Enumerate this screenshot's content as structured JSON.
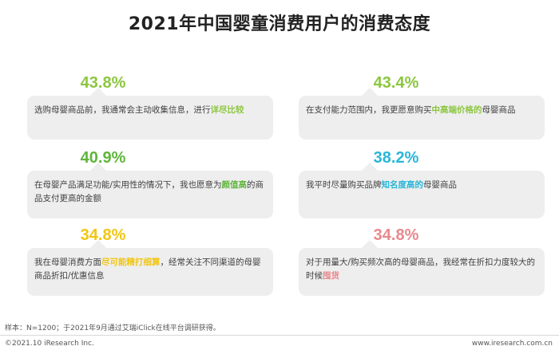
{
  "title": "2021年中国婴童消费用户的消费态度",
  "cards": [
    {
      "percent": "43.8%",
      "percent_color": "#8cc63e",
      "text_before": "选购母婴商品前，我通常会主动收集信息，进行",
      "highlight": "详尽比较",
      "highlight_color": "#8cc63e",
      "text_after": ""
    },
    {
      "percent": "43.4%",
      "percent_color": "#8cc63e",
      "text_before": "在支付能力范围内，我更愿意购买",
      "highlight": "中高端价格的",
      "highlight_color": "#8cc63e",
      "text_after": "母婴商品"
    },
    {
      "percent": "40.9%",
      "percent_color": "#5fb53b",
      "text_before": "在母婴产品满足功能/实用性的情况下，我也愿意为",
      "highlight": "颜值高",
      "highlight_color": "#5fb53b",
      "text_after": "的商品支付更高的金额"
    },
    {
      "percent": "38.2%",
      "percent_color": "#29b6d8",
      "text_before": "我平时尽量购买品牌",
      "highlight": "知名度高的",
      "highlight_color": "#29b6d8",
      "text_after": "母婴商品"
    },
    {
      "percent": "34.8%",
      "percent_color": "#f2c60f",
      "text_before": "我在母婴消费方面",
      "highlight": "尽可能精打细算",
      "highlight_color": "#f2c60f",
      "text_after": "，经常关注不同渠道的母婴商品折扣/优惠信息"
    },
    {
      "percent": "34.8%",
      "percent_color": "#e8888d",
      "text_before": "对于用量大/购买频次高的母婴商品，我经常在折扣力度较大的时候",
      "highlight": "囤货",
      "highlight_color": "#e8888d",
      "text_after": ""
    }
  ],
  "note": "样本：N=1200；于2021年9月通过艾瑞iClick在线平台调研获得。",
  "footer_left": "©2021.10 iResearch Inc.",
  "footer_right": "www.iresearch.com.cn"
}
